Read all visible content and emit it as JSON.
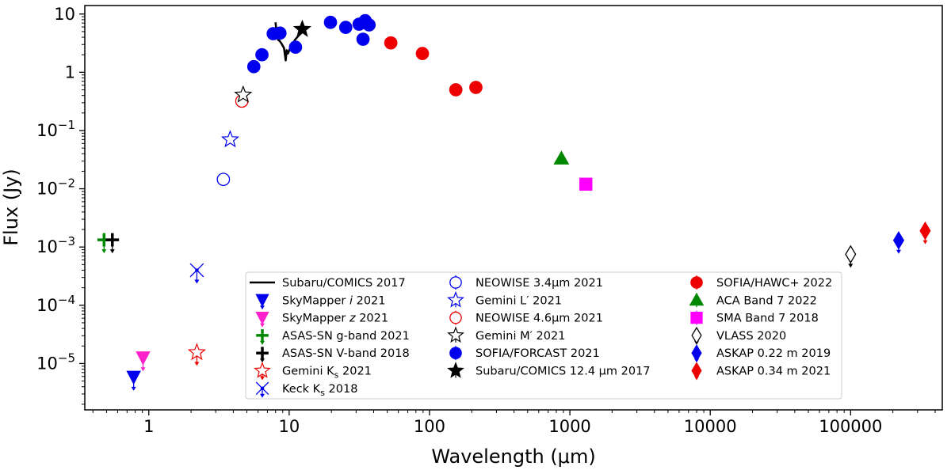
{
  "chart_data": {
    "type": "scatter",
    "xscale": "log",
    "yscale": "log",
    "xlim": [
      0.35,
      450000
    ],
    "ylim": [
      1.6e-06,
      14
    ],
    "xlabel": "Wavelength (μm)",
    "ylabel": "Flux (Jy)",
    "x_ticks": [
      {
        "value": 1,
        "label": "1"
      },
      {
        "value": 10,
        "label": "10"
      },
      {
        "value": 100,
        "label": "100"
      },
      {
        "value": 1000,
        "label": "1000"
      },
      {
        "value": 10000,
        "label": "10000"
      },
      {
        "value": 100000,
        "label": "100000"
      }
    ],
    "y_ticks": [
      {
        "value": 1e-05,
        "base": "10",
        "exp": "−5"
      },
      {
        "value": 0.0001,
        "base": "10",
        "exp": "−4"
      },
      {
        "value": 0.001,
        "base": "10",
        "exp": "−3"
      },
      {
        "value": 0.01,
        "base": "10",
        "exp": "−2"
      },
      {
        "value": 0.1,
        "base": "10",
        "exp": "−1"
      },
      {
        "value": 1,
        "base": "1",
        "exp": ""
      },
      {
        "value": 10,
        "base": "10",
        "exp": ""
      }
    ],
    "series": [
      {
        "name": "Subaru/COMICS 2017",
        "legend_main": "Subaru/COMICS 2017",
        "legend_sub": "",
        "legend_tail": "",
        "legend_col": 0,
        "color": "#000000",
        "marker": "line",
        "fill": true,
        "upper_limit": false,
        "points": [
          [
            8.0,
            7.2
          ],
          [
            8.15,
            4.5
          ],
          [
            8.35,
            3.6
          ],
          [
            8.6,
            3.4
          ],
          [
            8.9,
            3.0
          ],
          [
            9.2,
            2.6
          ],
          [
            9.45,
            1.6
          ],
          [
            9.6,
            2.4
          ],
          [
            9.8,
            2.1
          ],
          [
            10.1,
            2.5
          ],
          [
            10.5,
            2.9
          ],
          [
            11.0,
            3.6
          ],
          [
            11.6,
            4.2
          ],
          [
            12.3,
            4.8
          ],
          [
            13.0,
            5.6
          ]
        ]
      },
      {
        "name": "SkyMapper i 2021",
        "legend_main": "SkyMapper ",
        "legend_sub": "i",
        "legend_tail": " 2021",
        "legend_col": 0,
        "color": "#0000ee",
        "marker": "tri_down",
        "fill": true,
        "upper_limit": true,
        "points": [
          [
            0.78,
            5.8e-06
          ]
        ]
      },
      {
        "name": "SkyMapper z 2021",
        "legend_main": "SkyMapper ",
        "legend_sub": "z",
        "legend_tail": " 2021",
        "legend_col": 0,
        "color": "#ff22cc",
        "marker": "tri_down",
        "fill": true,
        "upper_limit": true,
        "points": [
          [
            0.91,
            1.25e-05
          ]
        ]
      },
      {
        "name": "ASAS-SN g-band 2021",
        "legend_main": "ASAS-SN g-band 2021",
        "legend_sub": "",
        "legend_tail": "",
        "legend_col": 0,
        "color": "#008800",
        "marker": "plus",
        "fill": true,
        "upper_limit": true,
        "points": [
          [
            0.48,
            0.00133
          ]
        ]
      },
      {
        "name": "ASAS-SN V-band 2018",
        "legend_main": "ASAS-SN V-band 2018",
        "legend_sub": "",
        "legend_tail": "",
        "legend_col": 0,
        "color": "#000000",
        "marker": "plus",
        "fill": true,
        "upper_limit": true,
        "points": [
          [
            0.55,
            0.00133
          ]
        ]
      },
      {
        "name": "Gemini Ks 2021",
        "legend_main": "Gemini K",
        "legend_sub": "s",
        "legend_tail": " 2021",
        "legend_col": 0,
        "color": "#ee0000",
        "marker": "star",
        "fill": false,
        "upper_limit": true,
        "points": [
          [
            2.2,
            1.55e-05
          ]
        ]
      },
      {
        "name": "Keck Ks 2018",
        "legend_main": "Keck K",
        "legend_sub": "s",
        "legend_tail": " 2018",
        "legend_col": 0,
        "color": "#0000ee",
        "marker": "x",
        "fill": false,
        "upper_limit": true,
        "points": [
          [
            2.2,
            0.0004
          ]
        ]
      },
      {
        "name": "NEOWISE 3.4μm 2021",
        "legend_main": "NEOWISE 3.4μm 2021",
        "legend_sub": "",
        "legend_tail": "",
        "legend_col": 1,
        "color": "#0000ee",
        "marker": "circle",
        "fill": false,
        "upper_limit": false,
        "points": [
          [
            3.4,
            0.0145
          ]
        ]
      },
      {
        "name": "Gemini L′ 2021",
        "legend_main": "Gemini L′ 2021",
        "legend_sub": "",
        "legend_tail": "",
        "legend_col": 1,
        "color": "#0000ee",
        "marker": "star",
        "fill": false,
        "upper_limit": false,
        "points": [
          [
            3.8,
            0.07
          ]
        ]
      },
      {
        "name": "NEOWISE 4.6μm 2021",
        "legend_main": "NEOWISE 4.6μm 2021",
        "legend_sub": "",
        "legend_tail": "",
        "legend_col": 1,
        "color": "#ee0000",
        "marker": "circle",
        "fill": false,
        "upper_limit": false,
        "points": [
          [
            4.6,
            0.32
          ]
        ]
      },
      {
        "name": "Gemini M′ 2021",
        "legend_main": "Gemini M′ 2021",
        "legend_sub": "",
        "legend_tail": "",
        "legend_col": 1,
        "color": "#000000",
        "marker": "star",
        "fill": false,
        "upper_limit": false,
        "points": [
          [
            4.7,
            0.41
          ]
        ]
      },
      {
        "name": "SOFIA/FORCAST 2021",
        "legend_main": "SOFIA/FORCAST 2021",
        "legend_sub": "",
        "legend_tail": "",
        "legend_col": 1,
        "color": "#0000ee",
        "marker": "circle",
        "fill": true,
        "upper_limit": false,
        "points": [
          [
            5.6,
            1.25
          ],
          [
            6.4,
            2.0
          ],
          [
            7.7,
            4.6
          ],
          [
            8.6,
            4.7
          ],
          [
            11.1,
            2.7
          ],
          [
            19.7,
            7.2
          ],
          [
            25.3,
            5.9
          ],
          [
            31.5,
            6.7
          ],
          [
            33.6,
            3.7
          ],
          [
            34.8,
            7.7
          ],
          [
            37.1,
            6.5
          ]
        ]
      },
      {
        "name": "Subaru/COMICS 12.4 μm 2017",
        "legend_main": "Subaru/COMICS 12.4 μm 2017",
        "legend_sub": "",
        "legend_tail": "",
        "legend_col": 1,
        "color": "#000000",
        "marker": "star",
        "fill": true,
        "upper_limit": false,
        "points": [
          [
            12.4,
            5.5
          ]
        ]
      },
      {
        "name": "SOFIA/HAWC+ 2022",
        "legend_main": "SOFIA/HAWC+ 2022",
        "legend_sub": "",
        "legend_tail": "",
        "legend_col": 2,
        "color": "#ee0000",
        "marker": "circle",
        "fill": true,
        "upper_limit": false,
        "points": [
          [
            53,
            3.2
          ],
          [
            89,
            2.1
          ],
          [
            154,
            0.5
          ],
          [
            214,
            0.55
          ]
        ]
      },
      {
        "name": "ACA Band 7 2022",
        "legend_main": "ACA Band 7 2022",
        "legend_sub": "",
        "legend_tail": "",
        "legend_col": 2,
        "color": "#008800",
        "marker": "tri_up",
        "fill": true,
        "upper_limit": false,
        "points": [
          [
            870,
            0.033
          ]
        ]
      },
      {
        "name": "SMA Band 7 2018",
        "legend_main": "SMA Band 7 2018",
        "legend_sub": "",
        "legend_tail": "",
        "legend_col": 2,
        "color": "#ff00ff",
        "marker": "square",
        "fill": true,
        "upper_limit": false,
        "points": [
          [
            1300,
            0.012
          ]
        ]
      },
      {
        "name": "VLASS 2020",
        "legend_main": "VLASS 2020",
        "legend_sub": "",
        "legend_tail": "",
        "legend_col": 2,
        "color": "#000000",
        "marker": "diamond",
        "fill": false,
        "upper_limit": true,
        "points": [
          [
            100000,
            0.00075
          ]
        ]
      },
      {
        "name": "ASKAP 0.22 m 2019",
        "legend_main": "ASKAP 0.22 m 2019",
        "legend_sub": "",
        "legend_tail": "",
        "legend_col": 2,
        "color": "#0000ee",
        "marker": "diamond",
        "fill": true,
        "upper_limit": true,
        "points": [
          [
            220000,
            0.0013
          ]
        ]
      },
      {
        "name": "ASKAP 0.34 m 2021",
        "legend_main": "ASKAP 0.34 m 2021",
        "legend_sub": "",
        "legend_tail": "",
        "legend_col": 2,
        "color": "#ee0000",
        "marker": "diamond",
        "fill": true,
        "upper_limit": true,
        "points": [
          [
            340000,
            0.0019
          ]
        ]
      }
    ]
  }
}
